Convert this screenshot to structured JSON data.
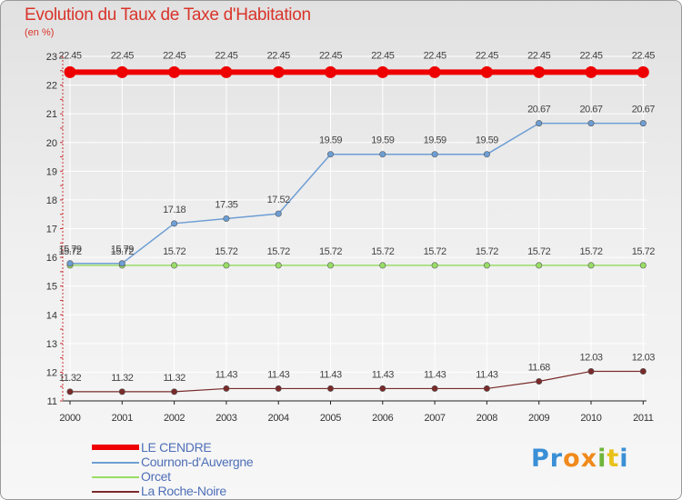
{
  "title": "Evolution du Taux de Taxe d'Habitation",
  "subtitle": "(en %)",
  "logo": {
    "letters": [
      "P",
      "r",
      "o",
      "x",
      "i",
      "t",
      "i"
    ],
    "colors": [
      "#3a8fd6",
      "#3a8fd6",
      "#f08a1c",
      "#f08a1c",
      "#6fb53a",
      "#e8c21a",
      "#3a8fd6"
    ]
  },
  "chart_data": {
    "type": "line",
    "title": "Evolution du Taux de Taxe d'Habitation",
    "ylabel": "(en %)",
    "xlabel": "",
    "ylim": [
      11,
      23
    ],
    "yticks": [
      11,
      12,
      13,
      14,
      15,
      16,
      17,
      18,
      19,
      20,
      21,
      22,
      23
    ],
    "categories": [
      "2000",
      "2001",
      "2002",
      "2003",
      "2004",
      "2005",
      "2006",
      "2007",
      "2008",
      "2009",
      "2010",
      "2011"
    ],
    "series": [
      {
        "name": "LE CENDRE",
        "color": "#ee0000",
        "width": 6,
        "marker": 6.5,
        "label_offset": -15,
        "values": [
          22.45,
          22.45,
          22.45,
          22.45,
          22.45,
          22.45,
          22.45,
          22.45,
          22.45,
          22.45,
          22.45,
          22.45
        ],
        "labels": [
          "22.45",
          "22.45",
          "22.45",
          "22.45",
          "22.45",
          "22.45",
          "22.45",
          "22.45",
          "22.45",
          "22.45",
          "22.45",
          "22.45"
        ]
      },
      {
        "name": "Cournon-d'Auvergne",
        "color": "#6d9ed4",
        "width": 1.5,
        "marker": 3.2,
        "label_offset": -12,
        "values": [
          15.79,
          15.79,
          17.18,
          17.35,
          17.52,
          19.59,
          19.59,
          19.59,
          19.59,
          20.67,
          20.67,
          20.67
        ],
        "labels": [
          "15.79",
          "15.79",
          "17.18",
          "17.35",
          "17.52",
          "19.59",
          "19.59",
          "19.59",
          "19.59",
          "20.67",
          "20.67",
          "20.67"
        ]
      },
      {
        "name": "Orcet",
        "color": "#99dd66",
        "width": 1.5,
        "marker": 3.2,
        "label_offset": -12,
        "values": [
          15.72,
          15.72,
          15.72,
          15.72,
          15.72,
          15.72,
          15.72,
          15.72,
          15.72,
          15.72,
          15.72,
          15.72
        ],
        "labels": [
          "15.72",
          "15.72",
          "15.72",
          "15.72",
          "15.72",
          "15.72",
          "15.72",
          "15.72",
          "15.72",
          "15.72",
          "15.72",
          "15.72"
        ]
      },
      {
        "name": "La Roche-Noire",
        "color": "#7a2a2a",
        "width": 1.2,
        "marker": 3.2,
        "label_offset": -12,
        "values": [
          11.32,
          11.32,
          11.32,
          11.43,
          11.43,
          11.43,
          11.43,
          11.43,
          11.43,
          11.68,
          12.03,
          12.03
        ],
        "labels": [
          "11.32",
          "11.32",
          "11.32",
          "11.43",
          "11.43",
          "11.43",
          "11.43",
          "11.43",
          "11.43",
          "11.68",
          "12.03",
          "12.03"
        ]
      }
    ]
  }
}
